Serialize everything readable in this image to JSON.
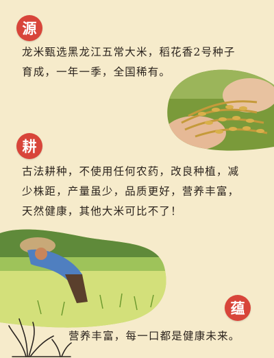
{
  "sections": [
    {
      "icon_char": "源",
      "text": "龙米甄选黑龙江五常大米，稻花香2号种子\n育成，一年一季，全国稀有。"
    },
    {
      "icon_char": "耕",
      "text": "古法耕种，不使用任何农药，改良种植，减\n少株距，产量虽少，品质更好，营养丰富，\n天然健康，其他大米可比不了！"
    },
    {
      "icon_char": "蕴",
      "text": "营养丰富，每一口都是健康未来。"
    }
  ],
  "colors": {
    "background": "#f6ebcb",
    "badge": "#d8453a",
    "text": "#2b231d"
  }
}
